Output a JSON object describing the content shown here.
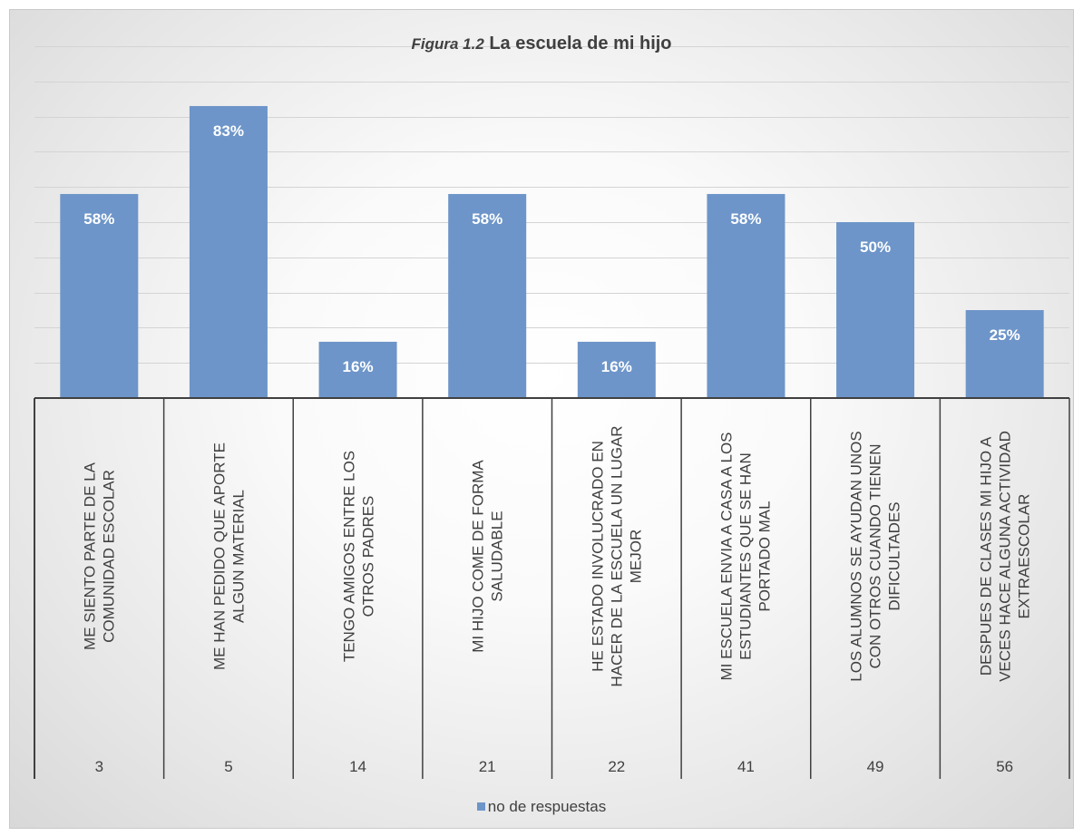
{
  "chart_data": {
    "type": "bar",
    "title_prefix": "Figura 1.2",
    "title": "La escuela de mi hijo",
    "xlabel": "",
    "ylabel": "",
    "ylim": [
      0,
      100
    ],
    "grid": true,
    "legend_position": "bottom",
    "color": "#6d95c9",
    "categories": [
      "ME SIENTO PARTE DE LA COMUNIDAD ESCOLAR",
      "ME HAN PEDIDO QUE APORTE ALGUN MATERIAL",
      "TENGO AMIGOS ENTRE LOS OTROS PADRES",
      "MI HIJO COME DE FORMA SALUDABLE",
      "HE ESTADO INVOLUCRADO EN HACER DE LA ESCUELA UN LUGAR MEJOR",
      "MI ESCUELA ENVIA A CASA A LOS ESTUDIANTES QUE SE HAN PORTADO MAL",
      "LOS ALUMNOS SE AYUDAN UNOS CON OTROS CUANDO TIENEN DIFICULTADES",
      "DESPUES DE CLASES MI HIJO A VECES HACE ALGUNA ACTIVIDAD EXTRAESCOLAR"
    ],
    "category_ids": [
      "3",
      "5",
      "14",
      "21",
      "22",
      "41",
      "49",
      "56"
    ],
    "series": [
      {
        "name": "no de respuestas",
        "values": [
          58,
          83,
          16,
          58,
          16,
          58,
          50,
          25
        ],
        "labels": [
          "58%",
          "83%",
          "16%",
          "58%",
          "16%",
          "58%",
          "50%",
          "25%"
        ]
      }
    ]
  }
}
